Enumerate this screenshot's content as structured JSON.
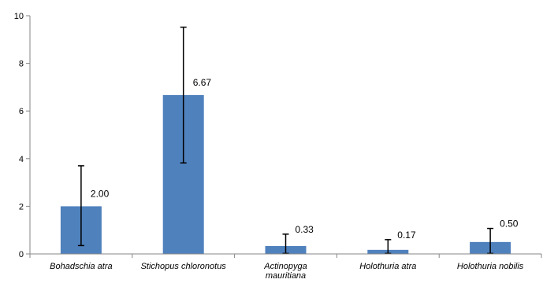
{
  "chart_data": {
    "type": "bar",
    "title": "",
    "xlabel": "",
    "ylabel": "",
    "ylim": [
      0,
      10
    ],
    "yticks": [
      "0",
      "2",
      "4",
      "6",
      "8",
      "10"
    ],
    "grid": false,
    "legend": "none",
    "bar_color": "#4f81bd",
    "categories": [
      {
        "lines": [
          "Bohadschia  atra"
        ]
      },
      {
        "lines": [
          "Stichopus chloronotus"
        ]
      },
      {
        "lines": [
          "Actinopyga",
          "mauritiana"
        ]
      },
      {
        "lines": [
          "Holothuria atra"
        ]
      },
      {
        "lines": [
          "Holothuria nobilis"
        ]
      }
    ],
    "values": [
      2.0,
      6.67,
      0.33,
      0.17,
      0.5
    ],
    "data_labels": [
      "2.00",
      "6.67",
      "0.33",
      "0.17",
      "0.50"
    ],
    "error_bars": [
      {
        "low": 0.35,
        "high": 3.7
      },
      {
        "low": 3.82,
        "high": 9.52
      },
      {
        "low": 0.02,
        "high": 0.83
      },
      {
        "low": 0.02,
        "high": 0.6
      },
      {
        "low": 0.02,
        "high": 1.07
      }
    ]
  }
}
